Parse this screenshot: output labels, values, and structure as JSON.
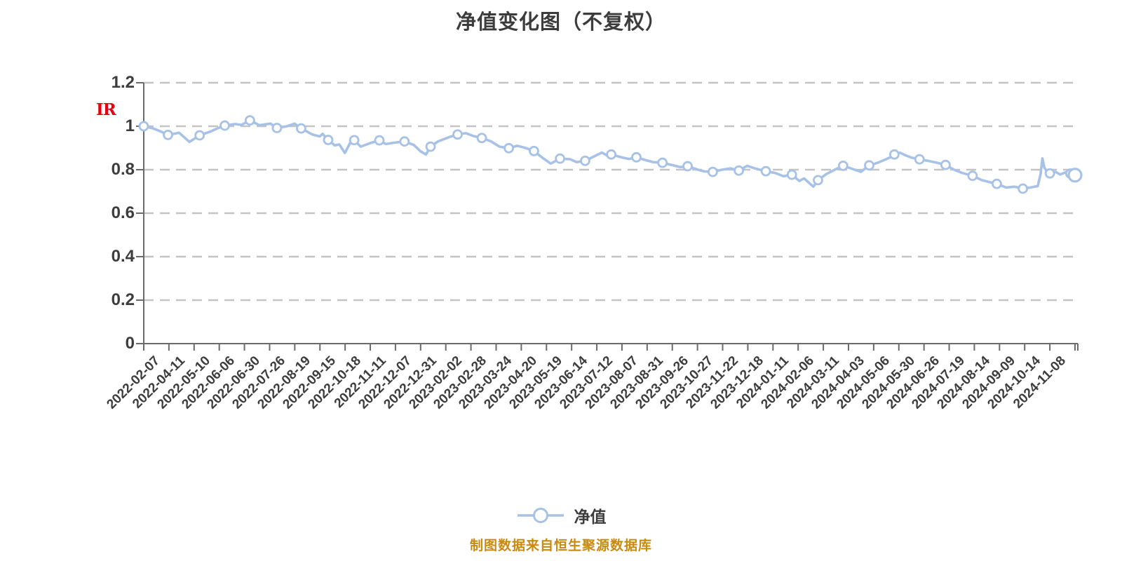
{
  "title": "净值变化图（不复权）",
  "watermark_text": "IR",
  "footer_note": "制图数据来自恒生聚源数据库",
  "legend": {
    "label": "净值"
  },
  "colors": {
    "line": "#A7C2E6",
    "marker_fill": "#FFFFFF",
    "grid": "#C4C4C4",
    "axis": "#6B6B6B",
    "text": "#3D3D3D",
    "title": "#3C3C3C",
    "footer": "#C98A10",
    "watermark_red": "#E60012"
  },
  "chart_data": {
    "type": "line",
    "title": "净值变化图（不复权）",
    "series_name": "净值",
    "xlabel": "",
    "ylabel": "",
    "ylim": [
      0,
      1.2
    ],
    "y_tick_labels": [
      "0",
      "0.2",
      "0.4",
      "0.6",
      "0.8",
      "1",
      "1.2"
    ],
    "grid": "horizontal-dashed",
    "legend_position": "bottom-center",
    "x_tick_labels": [
      "2022-02-07",
      "2022-04-11",
      "2022-05-10",
      "2022-06-06",
      "2022-06-30",
      "2022-07-26",
      "2022-08-19",
      "2022-09-15",
      "2022-10-18",
      "2022-11-11",
      "2022-12-07",
      "2022-12-31",
      "2023-02-02",
      "2023-02-28",
      "2023-03-24",
      "2023-04-20",
      "2023-05-19",
      "2023-06-14",
      "2023-07-12",
      "2023-08-07",
      "2023-08-31",
      "2023-09-26",
      "2023-10-27",
      "2023-11-22",
      "2023-12-18",
      "2024-01-11",
      "2024-02-06",
      "2024-03-11",
      "2024-04-03",
      "2024-05-06",
      "2024-05-30",
      "2024-06-26",
      "2024-07-19",
      "2024-08-14",
      "2024-09-09",
      "2024-10-14",
      "2024-11-08"
    ],
    "points_format": "[x_fraction_along_axis, net_value, marker(0=none,1=dot,2=end-dot)]",
    "points": [
      [
        0.0,
        1.0,
        1
      ],
      [
        0.01,
        0.99,
        0
      ],
      [
        0.017,
        0.978,
        0
      ],
      [
        0.026,
        0.96,
        1
      ],
      [
        0.038,
        0.97,
        0
      ],
      [
        0.049,
        0.928,
        0
      ],
      [
        0.06,
        0.958,
        1
      ],
      [
        0.072,
        0.976,
        0
      ],
      [
        0.079,
        0.99,
        0
      ],
      [
        0.087,
        1.003,
        1
      ],
      [
        0.098,
        1.01,
        0
      ],
      [
        0.105,
        1.006,
        0
      ],
      [
        0.114,
        1.027,
        1
      ],
      [
        0.124,
        1.005,
        0
      ],
      [
        0.136,
        1.012,
        0
      ],
      [
        0.143,
        0.992,
        1
      ],
      [
        0.154,
        1.0,
        0
      ],
      [
        0.162,
        1.012,
        0
      ],
      [
        0.169,
        0.99,
        1
      ],
      [
        0.181,
        0.962,
        0
      ],
      [
        0.189,
        0.953,
        0
      ],
      [
        0.192,
        0.965,
        0
      ],
      [
        0.198,
        0.937,
        1
      ],
      [
        0.205,
        0.912,
        0
      ],
      [
        0.21,
        0.916,
        0
      ],
      [
        0.216,
        0.877,
        0
      ],
      [
        0.222,
        0.926,
        0
      ],
      [
        0.226,
        0.936,
        1
      ],
      [
        0.233,
        0.906,
        0
      ],
      [
        0.243,
        0.922,
        0
      ],
      [
        0.253,
        0.935,
        1
      ],
      [
        0.26,
        0.918,
        0
      ],
      [
        0.268,
        0.924,
        0
      ],
      [
        0.28,
        0.93,
        1
      ],
      [
        0.29,
        0.914,
        0
      ],
      [
        0.297,
        0.885,
        0
      ],
      [
        0.303,
        0.87,
        0
      ],
      [
        0.308,
        0.906,
        1
      ],
      [
        0.316,
        0.93,
        0
      ],
      [
        0.328,
        0.95,
        0
      ],
      [
        0.337,
        0.962,
        1
      ],
      [
        0.346,
        0.968,
        0
      ],
      [
        0.354,
        0.955,
        0
      ],
      [
        0.363,
        0.946,
        1
      ],
      [
        0.373,
        0.93,
        0
      ],
      [
        0.382,
        0.906,
        0
      ],
      [
        0.392,
        0.899,
        1
      ],
      [
        0.401,
        0.91,
        0
      ],
      [
        0.41,
        0.9,
        0
      ],
      [
        0.419,
        0.886,
        1
      ],
      [
        0.428,
        0.855,
        0
      ],
      [
        0.437,
        0.828,
        0
      ],
      [
        0.447,
        0.851,
        1
      ],
      [
        0.458,
        0.848,
        0
      ],
      [
        0.465,
        0.835,
        0
      ],
      [
        0.474,
        0.841,
        1
      ],
      [
        0.484,
        0.862,
        0
      ],
      [
        0.492,
        0.879,
        0
      ],
      [
        0.497,
        0.866,
        0
      ],
      [
        0.502,
        0.87,
        1
      ],
      [
        0.512,
        0.858,
        0
      ],
      [
        0.521,
        0.849,
        0
      ],
      [
        0.529,
        0.857,
        1
      ],
      [
        0.538,
        0.845,
        0
      ],
      [
        0.547,
        0.835,
        0
      ],
      [
        0.557,
        0.832,
        1
      ],
      [
        0.567,
        0.822,
        0
      ],
      [
        0.576,
        0.812,
        0
      ],
      [
        0.584,
        0.816,
        1
      ],
      [
        0.595,
        0.8,
        0
      ],
      [
        0.602,
        0.792,
        0
      ],
      [
        0.611,
        0.79,
        1
      ],
      [
        0.621,
        0.8,
        0
      ],
      [
        0.63,
        0.806,
        0
      ],
      [
        0.639,
        0.796,
        1
      ],
      [
        0.648,
        0.818,
        0
      ],
      [
        0.657,
        0.805,
        0
      ],
      [
        0.668,
        0.793,
        1
      ],
      [
        0.678,
        0.785,
        0
      ],
      [
        0.687,
        0.77,
        0
      ],
      [
        0.696,
        0.777,
        1
      ],
      [
        0.704,
        0.748,
        0
      ],
      [
        0.709,
        0.76,
        0
      ],
      [
        0.719,
        0.722,
        0
      ],
      [
        0.724,
        0.752,
        1
      ],
      [
        0.733,
        0.78,
        0
      ],
      [
        0.742,
        0.8,
        0
      ],
      [
        0.751,
        0.818,
        1
      ],
      [
        0.76,
        0.805,
        0
      ],
      [
        0.77,
        0.79,
        0
      ],
      [
        0.779,
        0.82,
        1
      ],
      [
        0.788,
        0.832,
        0
      ],
      [
        0.797,
        0.848,
        0
      ],
      [
        0.802,
        0.858,
        0
      ],
      [
        0.806,
        0.87,
        1
      ],
      [
        0.812,
        0.878,
        0
      ],
      [
        0.818,
        0.866,
        0
      ],
      [
        0.824,
        0.856,
        0
      ],
      [
        0.833,
        0.848,
        1
      ],
      [
        0.843,
        0.84,
        0
      ],
      [
        0.852,
        0.832,
        0
      ],
      [
        0.861,
        0.822,
        1
      ],
      [
        0.87,
        0.8,
        0
      ],
      [
        0.879,
        0.785,
        0
      ],
      [
        0.89,
        0.772,
        1
      ],
      [
        0.9,
        0.752,
        0
      ],
      [
        0.909,
        0.742,
        0
      ],
      [
        0.916,
        0.735,
        1
      ],
      [
        0.926,
        0.718,
        0
      ],
      [
        0.935,
        0.722,
        0
      ],
      [
        0.944,
        0.713,
        1
      ],
      [
        0.952,
        0.718,
        0
      ],
      [
        0.96,
        0.725,
        0
      ],
      [
        0.963,
        0.78,
        0
      ],
      [
        0.965,
        0.852,
        0
      ],
      [
        0.967,
        0.81,
        0
      ],
      [
        0.97,
        0.79,
        0
      ],
      [
        0.973,
        0.783,
        1
      ],
      [
        0.979,
        0.79,
        0
      ],
      [
        0.984,
        0.778,
        0
      ],
      [
        0.99,
        0.788,
        0
      ],
      [
        0.995,
        0.782,
        1
      ],
      [
        1.0,
        0.775,
        2
      ]
    ]
  }
}
